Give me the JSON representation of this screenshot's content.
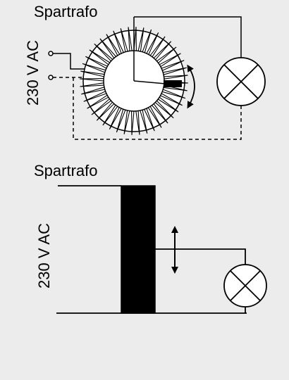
{
  "diagrams": [
    {
      "title": "Spartrafo",
      "voltage_label": "230 V AC",
      "kind": "toroidal-variac"
    },
    {
      "title": "Spartrafo",
      "voltage_label": "230 V AC",
      "kind": "schematic-variac"
    }
  ],
  "colors": {
    "background": "#ececec",
    "line": "#000000",
    "core_fill": "#000000",
    "lamp_fill": "#ffffff"
  },
  "icons": [
    "lamp-icon",
    "double-arrow-icon",
    "curved-double-arrow-icon",
    "terminal-icon"
  ]
}
